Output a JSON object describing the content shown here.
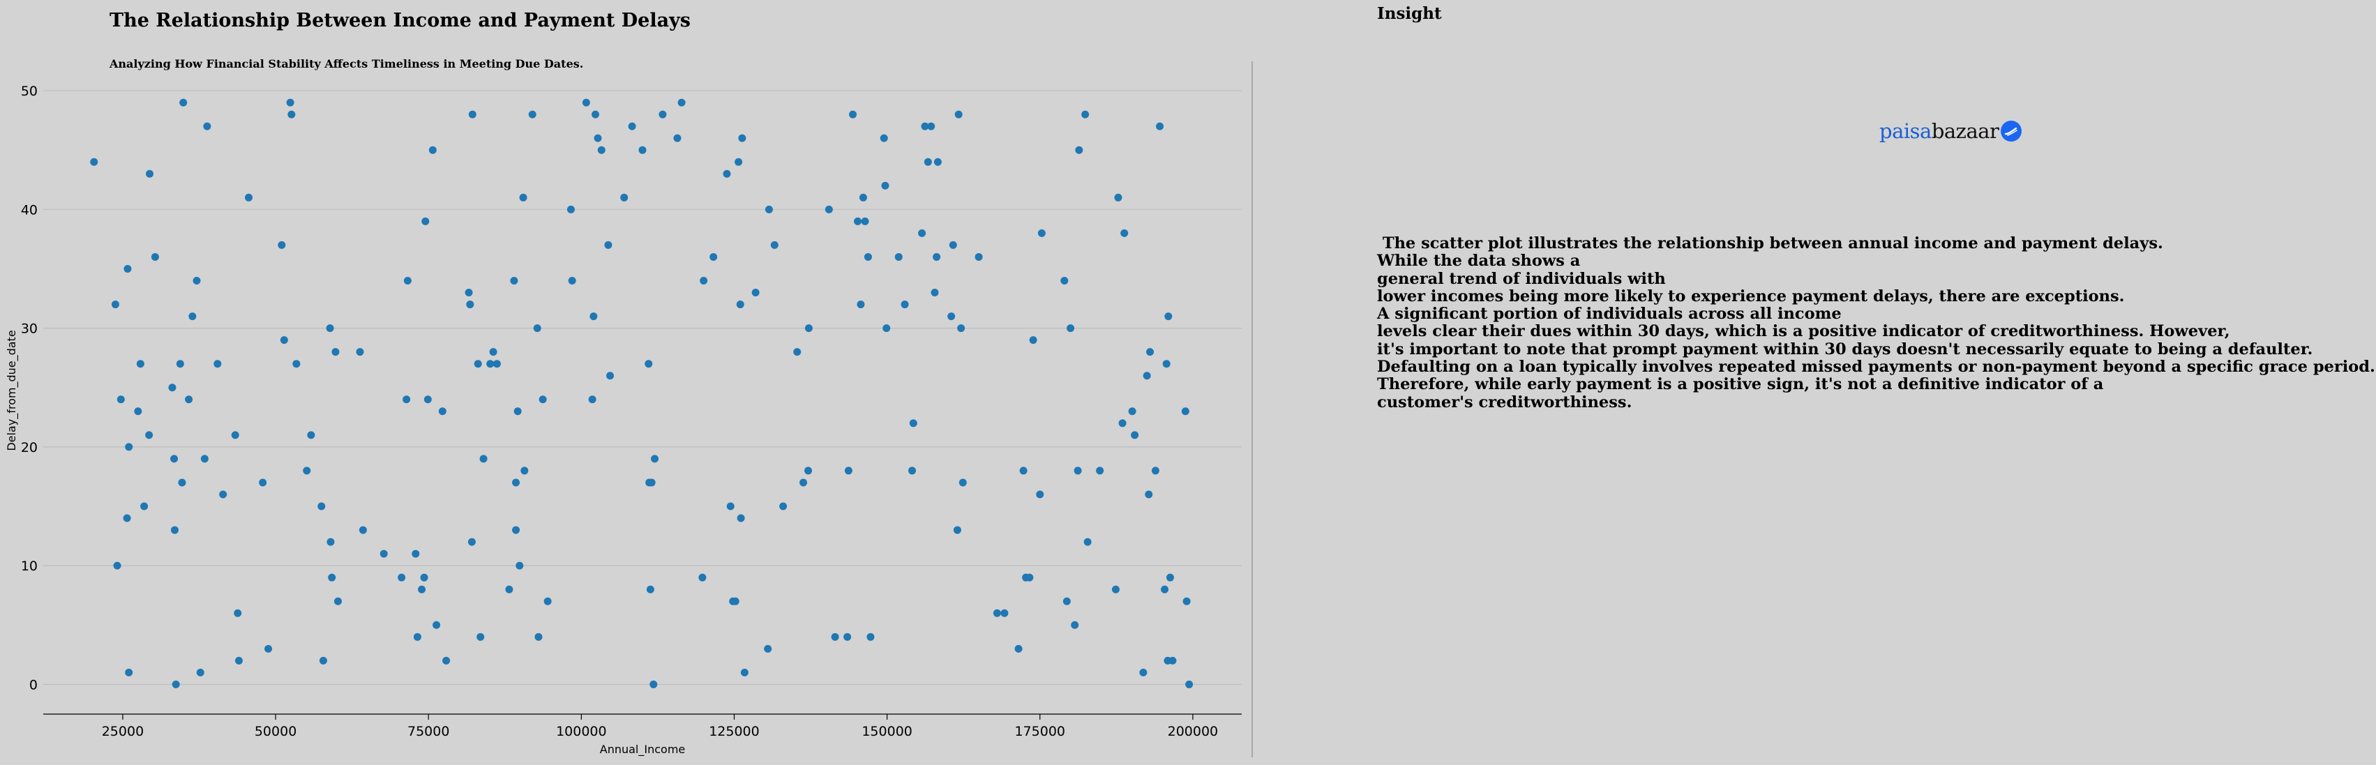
{
  "chart_data": {
    "type": "scatter",
    "title": "The Relationship Between Income and Payment Delays",
    "subtitle": "Analyzing How Financial Stability Affects Timeliness in Meeting Due Dates.",
    "xlabel": "Annual_Income",
    "ylabel": "Delay_from_due_date",
    "xlim": [
      12000,
      208000
    ],
    "ylim": [
      -2.5,
      52
    ],
    "x_ticks": [
      25000,
      50000,
      75000,
      100000,
      125000,
      150000,
      175000,
      200000
    ],
    "x_tick_labels": [
      "25000",
      "50000",
      "75000",
      "100000",
      "125000",
      "150000",
      "175000",
      "200000"
    ],
    "y_ticks": [
      0,
      10,
      20,
      30,
      40,
      50
    ],
    "y_tick_labels": [
      "0",
      "10",
      "20",
      "30",
      "40",
      "50"
    ],
    "grid": "horizontal",
    "marker_color": "#1f77b4",
    "points": [
      [
        20300,
        44
      ],
      [
        23800,
        32
      ],
      [
        24100,
        10
      ],
      [
        24700,
        24
      ],
      [
        25700,
        14
      ],
      [
        25800,
        35
      ],
      [
        26000,
        20
      ],
      [
        26000,
        1
      ],
      [
        27500,
        23
      ],
      [
        27900,
        27
      ],
      [
        28500,
        15
      ],
      [
        29300,
        21
      ],
      [
        29400,
        43
      ],
      [
        30300,
        36
      ],
      [
        33100,
        25
      ],
      [
        33400,
        19
      ],
      [
        33500,
        13
      ],
      [
        33700,
        0
      ],
      [
        34400,
        27
      ],
      [
        34700,
        17
      ],
      [
        34900,
        49
      ],
      [
        35800,
        24
      ],
      [
        36400,
        31
      ],
      [
        37100,
        34
      ],
      [
        37700,
        1
      ],
      [
        38400,
        19
      ],
      [
        38800,
        47
      ],
      [
        40500,
        27
      ],
      [
        41400,
        16
      ],
      [
        43400,
        21
      ],
      [
        43800,
        6
      ],
      [
        44000,
        2
      ],
      [
        45600,
        41
      ],
      [
        47900,
        17
      ],
      [
        48800,
        3
      ],
      [
        51000,
        37
      ],
      [
        51400,
        29
      ],
      [
        52400,
        49
      ],
      [
        52600,
        48
      ],
      [
        53400,
        27
      ],
      [
        55100,
        18
      ],
      [
        55800,
        21
      ],
      [
        57500,
        15
      ],
      [
        57800,
        2
      ],
      [
        58900,
        30
      ],
      [
        59000,
        12
      ],
      [
        59200,
        9
      ],
      [
        59800,
        28
      ],
      [
        60200,
        7
      ],
      [
        63800,
        28
      ],
      [
        64300,
        13
      ],
      [
        67700,
        11
      ],
      [
        70600,
        9
      ],
      [
        71400,
        24
      ],
      [
        71600,
        34
      ],
      [
        72900,
        11
      ],
      [
        73200,
        4
      ],
      [
        73900,
        8
      ],
      [
        74300,
        9
      ],
      [
        74500,
        39
      ],
      [
        74900,
        24
      ],
      [
        75700,
        45
      ],
      [
        76300,
        5
      ],
      [
        77300,
        23
      ],
      [
        77900,
        2
      ],
      [
        81600,
        33
      ],
      [
        81800,
        32
      ],
      [
        82100,
        12
      ],
      [
        82200,
        48
      ],
      [
        83100,
        27
      ],
      [
        83500,
        4
      ],
      [
        84000,
        19
      ],
      [
        85100,
        27
      ],
      [
        85600,
        28
      ],
      [
        86200,
        27
      ],
      [
        88200,
        8
      ],
      [
        89000,
        34
      ],
      [
        89300,
        17
      ],
      [
        89300,
        13
      ],
      [
        89600,
        23
      ],
      [
        89900,
        10
      ],
      [
        90500,
        41
      ],
      [
        90700,
        18
      ],
      [
        92000,
        48
      ],
      [
        92800,
        30
      ],
      [
        93000,
        4
      ],
      [
        93700,
        24
      ],
      [
        94500,
        7
      ],
      [
        98300,
        40
      ],
      [
        98500,
        34
      ],
      [
        100800,
        49
      ],
      [
        101800,
        24
      ],
      [
        102000,
        31
      ],
      [
        102300,
        48
      ],
      [
        102700,
        46
      ],
      [
        103300,
        45
      ],
      [
        104400,
        37
      ],
      [
        104700,
        26
      ],
      [
        107000,
        41
      ],
      [
        108300,
        47
      ],
      [
        110000,
        45
      ],
      [
        111000,
        27
      ],
      [
        111100,
        17
      ],
      [
        111300,
        8
      ],
      [
        111500,
        17
      ],
      [
        111800,
        0
      ],
      [
        112000,
        19
      ],
      [
        113300,
        48
      ],
      [
        115700,
        46
      ],
      [
        116400,
        49
      ],
      [
        119800,
        9
      ],
      [
        120000,
        34
      ],
      [
        121600,
        36
      ],
      [
        123800,
        43
      ],
      [
        124400,
        15
      ],
      [
        124800,
        7
      ],
      [
        125200,
        7
      ],
      [
        125700,
        44
      ],
      [
        126000,
        32
      ],
      [
        126100,
        14
      ],
      [
        126300,
        46
      ],
      [
        126700,
        1
      ],
      [
        128500,
        33
      ],
      [
        130500,
        3
      ],
      [
        130700,
        40
      ],
      [
        131600,
        37
      ],
      [
        133000,
        15
      ],
      [
        135300,
        28
      ],
      [
        136300,
        17
      ],
      [
        137100,
        18
      ],
      [
        137200,
        30
      ],
      [
        140500,
        40
      ],
      [
        141500,
        4
      ],
      [
        143500,
        4
      ],
      [
        143700,
        18
      ],
      [
        144400,
        48
      ],
      [
        145200,
        39
      ],
      [
        145700,
        32
      ],
      [
        146100,
        41
      ],
      [
        146400,
        39
      ],
      [
        146900,
        36
      ],
      [
        147300,
        4
      ],
      [
        149500,
        46
      ],
      [
        149700,
        42
      ],
      [
        149900,
        30
      ],
      [
        151900,
        36
      ],
      [
        152900,
        32
      ],
      [
        154100,
        18
      ],
      [
        154300,
        22
      ],
      [
        155700,
        38
      ],
      [
        156200,
        47
      ],
      [
        156700,
        44
      ],
      [
        157200,
        47
      ],
      [
        157800,
        33
      ],
      [
        158100,
        36
      ],
      [
        158300,
        44
      ],
      [
        160500,
        31
      ],
      [
        160800,
        37
      ],
      [
        161500,
        13
      ],
      [
        161700,
        48
      ],
      [
        162100,
        30
      ],
      [
        162400,
        17
      ],
      [
        165000,
        36
      ],
      [
        168000,
        6
      ],
      [
        169200,
        6
      ],
      [
        171500,
        3
      ],
      [
        172300,
        18
      ],
      [
        172700,
        9
      ],
      [
        173300,
        9
      ],
      [
        173900,
        29
      ],
      [
        175000,
        16
      ],
      [
        175300,
        38
      ],
      [
        179000,
        34
      ],
      [
        179400,
        7
      ],
      [
        180000,
        30
      ],
      [
        180700,
        5
      ],
      [
        181200,
        18
      ],
      [
        181400,
        45
      ],
      [
        182400,
        48
      ],
      [
        182800,
        12
      ],
      [
        184800,
        18
      ],
      [
        187400,
        8
      ],
      [
        187800,
        41
      ],
      [
        188500,
        22
      ],
      [
        188800,
        38
      ],
      [
        190100,
        23
      ],
      [
        190500,
        21
      ],
      [
        191900,
        1
      ],
      [
        192500,
        26
      ],
      [
        192800,
        16
      ],
      [
        193000,
        28
      ],
      [
        193900,
        18
      ],
      [
        194600,
        47
      ],
      [
        195400,
        8
      ],
      [
        195700,
        27
      ],
      [
        195900,
        2
      ],
      [
        196000,
        31
      ],
      [
        196300,
        9
      ],
      [
        196700,
        2
      ],
      [
        198800,
        23
      ],
      [
        199000,
        7
      ],
      [
        199400,
        0
      ]
    ]
  },
  "insight": {
    "heading": "Insight",
    "lines": [
      " The scatter plot illustrates the relationship between annual income and payment delays.",
      "While the data shows a",
      "general trend of individuals with",
      "lower incomes being more likely to experience payment delays, there are exceptions.",
      "A significant portion of individuals across all income",
      "levels clear their dues within 30 days, which is a positive indicator of creditworthiness. However,",
      "it's important to note that prompt payment within 30 days doesn't necessarily equate to being a defaulter.",
      "Defaulting on a loan typically involves repeated missed payments or non-payment beyond a specific grace period.",
      "Therefore, while early payment is a positive sign, it's not a definitive indicator of a",
      "customer's creditworthiness."
    ]
  },
  "logo": {
    "part1": "paisa",
    "part2": "bazaar",
    "icon": "paisabazaar-logo-icon",
    "color_primary": "#1a5fd6",
    "color_icon": "#1a66f0"
  }
}
